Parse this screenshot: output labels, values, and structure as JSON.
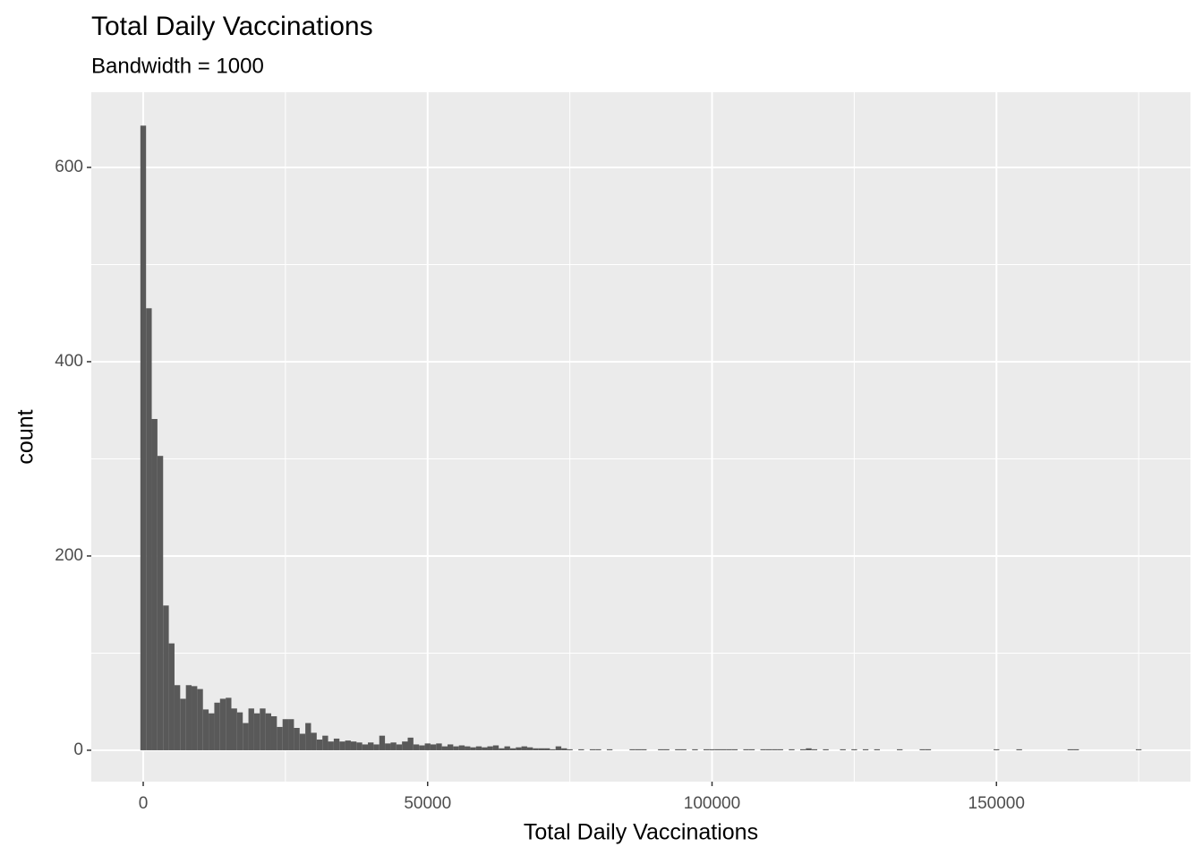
{
  "chart_data": {
    "type": "histogram",
    "title": "Total Daily Vaccinations",
    "subtitle": "Bandwidth = 1000",
    "x_label": "Total Daily Vaccinations",
    "y_label": "count",
    "color": "#595959",
    "grid": true,
    "xlim": [
      -9127,
      184110
    ],
    "ylim": [
      -32.3,
      677.4
    ],
    "xticks": [
      0,
      50000,
      100000,
      150000
    ],
    "yticks": [
      0,
      200,
      400,
      600
    ],
    "xminor": [
      25000,
      75000,
      125000,
      175000
    ],
    "yminor": [
      100,
      300,
      500
    ],
    "bins": [
      -500,
      500,
      1500,
      2500,
      3500,
      4500,
      5500,
      6500,
      7500,
      8500,
      9500,
      10500,
      11500,
      12500,
      13500,
      14500,
      15500,
      16500,
      17500,
      18500,
      19500,
      20500,
      21500,
      22500,
      23500,
      24500,
      25500,
      26500,
      27500,
      28500,
      29500,
      30500,
      31500,
      32500,
      33500,
      34500,
      35500,
      36500,
      37500,
      38500,
      39500,
      40500,
      41500,
      42500,
      43500,
      44500,
      45500,
      46500,
      47500,
      48500,
      49500,
      50500,
      51500,
      52500,
      53500,
      54500,
      55500,
      56500,
      57500,
      58500,
      59500,
      60500,
      61500,
      62500,
      63500,
      64500,
      65500,
      66500,
      67500,
      68500,
      69500,
      70500,
      71500,
      72500,
      73500,
      74500,
      75500,
      76500,
      77500,
      78500,
      79500,
      80500,
      81500,
      82500,
      83500,
      84500,
      85500,
      86500,
      87500,
      88500,
      89500,
      90500,
      91500,
      92500,
      93500,
      94500,
      95500,
      96500,
      97500,
      98500,
      99500,
      100500,
      101500,
      102500,
      103500,
      104500,
      105500,
      106500,
      107500,
      108500,
      109500,
      110500,
      111500,
      112500,
      113500,
      114500,
      115500,
      116500,
      117500,
      118500,
      119500,
      120500,
      121500,
      122500,
      123500,
      124500,
      125500,
      126500,
      127500,
      128500,
      129500,
      130500,
      131500,
      132500,
      133500,
      134500,
      135500,
      136500,
      137500,
      138500,
      139500,
      140500,
      141500,
      142500,
      143500,
      144500,
      145500,
      146500,
      147500,
      148500,
      149500,
      150500,
      151500,
      152500,
      153500,
      154500,
      155500,
      156500,
      157500,
      158500,
      159500,
      160500,
      161500,
      162500,
      163500,
      164500,
      165500,
      166500,
      167500,
      168500,
      169500,
      170500,
      171500,
      172500,
      173500,
      174500,
      175500
    ],
    "values": [
      643,
      455,
      341,
      303,
      149,
      110,
      67,
      53,
      67,
      66,
      63,
      42,
      38,
      49,
      53,
      54,
      43,
      39,
      28,
      43,
      38,
      43,
      38,
      35,
      24,
      32,
      32,
      23,
      17,
      28,
      18,
      11,
      15,
      9,
      12,
      9,
      10,
      9,
      8,
      6,
      8,
      6,
      15,
      7,
      8,
      6,
      9,
      13,
      6,
      5,
      7,
      6,
      7,
      4,
      6,
      4,
      5,
      4,
      3,
      4,
      3,
      4,
      5,
      2,
      4,
      2,
      3,
      4,
      3,
      2,
      2,
      2,
      1,
      4,
      2,
      1,
      0,
      1,
      0,
      1,
      1,
      0,
      1,
      0,
      0,
      0,
      1,
      1,
      1,
      0,
      0,
      1,
      1,
      0,
      1,
      1,
      0,
      1,
      0,
      1,
      1,
      1,
      1,
      1,
      1,
      0,
      1,
      1,
      0,
      1,
      1,
      1,
      1,
      0,
      1,
      0,
      1,
      2,
      1,
      0,
      1,
      0,
      0,
      1,
      0,
      1,
      0,
      1,
      0,
      1,
      0,
      0,
      0,
      1,
      0,
      0,
      0,
      1,
      1,
      0,
      0,
      0,
      0,
      0,
      0,
      0,
      0,
      0,
      0,
      0,
      1,
      0,
      0,
      0,
      1,
      0,
      0,
      0,
      0,
      0,
      0,
      0,
      0,
      1,
      1,
      0,
      0,
      0,
      0,
      0,
      0,
      0,
      0,
      0,
      0,
      1
    ]
  }
}
